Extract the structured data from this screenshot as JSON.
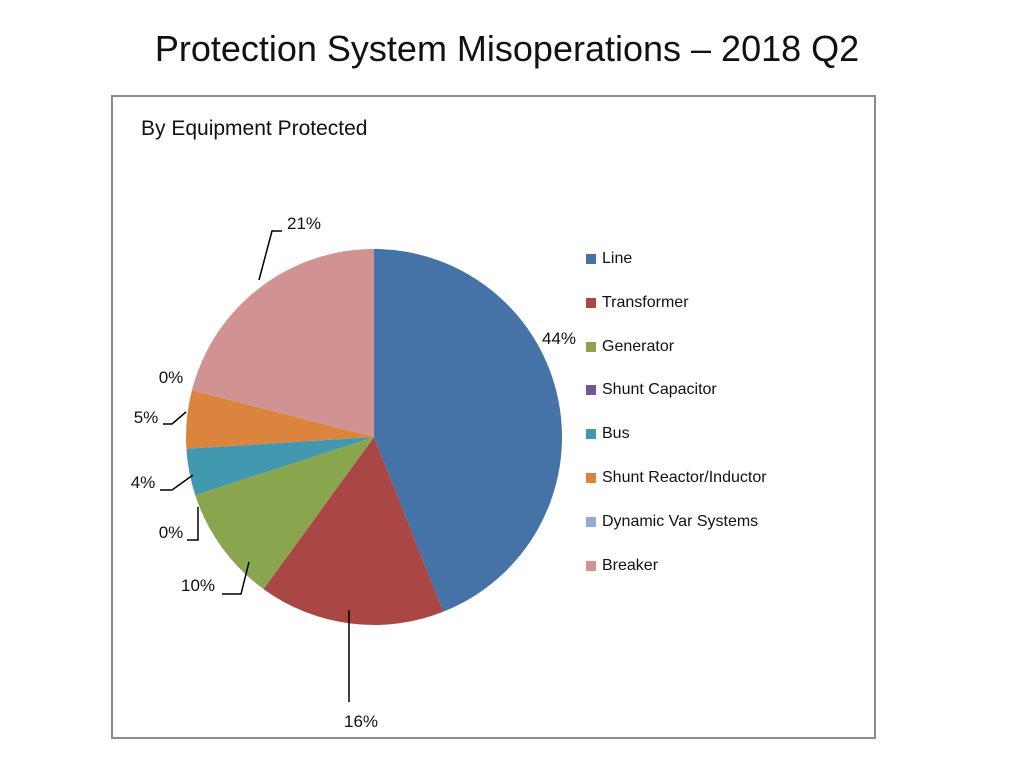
{
  "slide": {
    "title": "Protection System Misoperations – 2018 Q2"
  },
  "chart_data": {
    "type": "pie",
    "title": "By Equipment Protected",
    "legend_position": "right",
    "categories": [
      "Line",
      "Transformer",
      "Generator",
      "Shunt Capacitor",
      "Bus",
      "Shunt Reactor/Inductor",
      "Dynamic Var Systems",
      "Breaker"
    ],
    "values": [
      44,
      16,
      10,
      0,
      4,
      5,
      0,
      21
    ],
    "labels": [
      "44%",
      "16%",
      "10%",
      "0%",
      "4%",
      "5%",
      "0%",
      "21%"
    ],
    "colors": [
      "#4572A7",
      "#AA4643",
      "#89A54E",
      "#71588F",
      "#4198AF",
      "#DB843D",
      "#93A9CF",
      "#D19392"
    ]
  }
}
